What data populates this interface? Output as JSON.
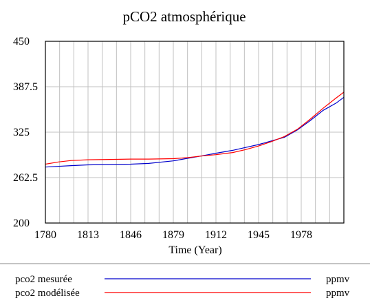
{
  "chart_data": {
    "type": "line",
    "title": "pCO2 atmosphérique",
    "xlabel": "Time (Year)",
    "ylabel": "",
    "xlim": [
      1780,
      2011
    ],
    "ylim": [
      200,
      450
    ],
    "x_ticks": [
      "1780",
      "1813",
      "1846",
      "1879",
      "1912",
      "1945",
      "1978"
    ],
    "y_ticks": [
      "450",
      "387.5",
      "325",
      "262.5",
      "200"
    ],
    "grid": true,
    "legend_position": "bottom",
    "series": [
      {
        "name": "pco2 mesurée",
        "unit": "ppmv",
        "color": "#0000cc",
        "x": [
          1780,
          1800,
          1813,
          1830,
          1846,
          1860,
          1879,
          1890,
          1900,
          1912,
          1925,
          1935,
          1945,
          1955,
          1965,
          1975,
          1985,
          1995,
          2005,
          2011
        ],
        "y": [
          277,
          279,
          280,
          280.5,
          281,
          282,
          285.5,
          289,
          292,
          296,
          300,
          304,
          308,
          313,
          318,
          328,
          341,
          355,
          365,
          373
        ]
      },
      {
        "name": "pco2 modélisée",
        "unit": "ppmv",
        "color": "#ff0000",
        "x": [
          1780,
          1790,
          1800,
          1813,
          1830,
          1846,
          1860,
          1879,
          1890,
          1900,
          1912,
          1925,
          1935,
          1945,
          1955,
          1965,
          1975,
          1985,
          1995,
          2005,
          2011
        ],
        "y": [
          281,
          284,
          286,
          287,
          287.5,
          288,
          288,
          288.5,
          290,
          292,
          294,
          297,
          301,
          306,
          312,
          319,
          329,
          343,
          358,
          372,
          380
        ]
      }
    ]
  }
}
